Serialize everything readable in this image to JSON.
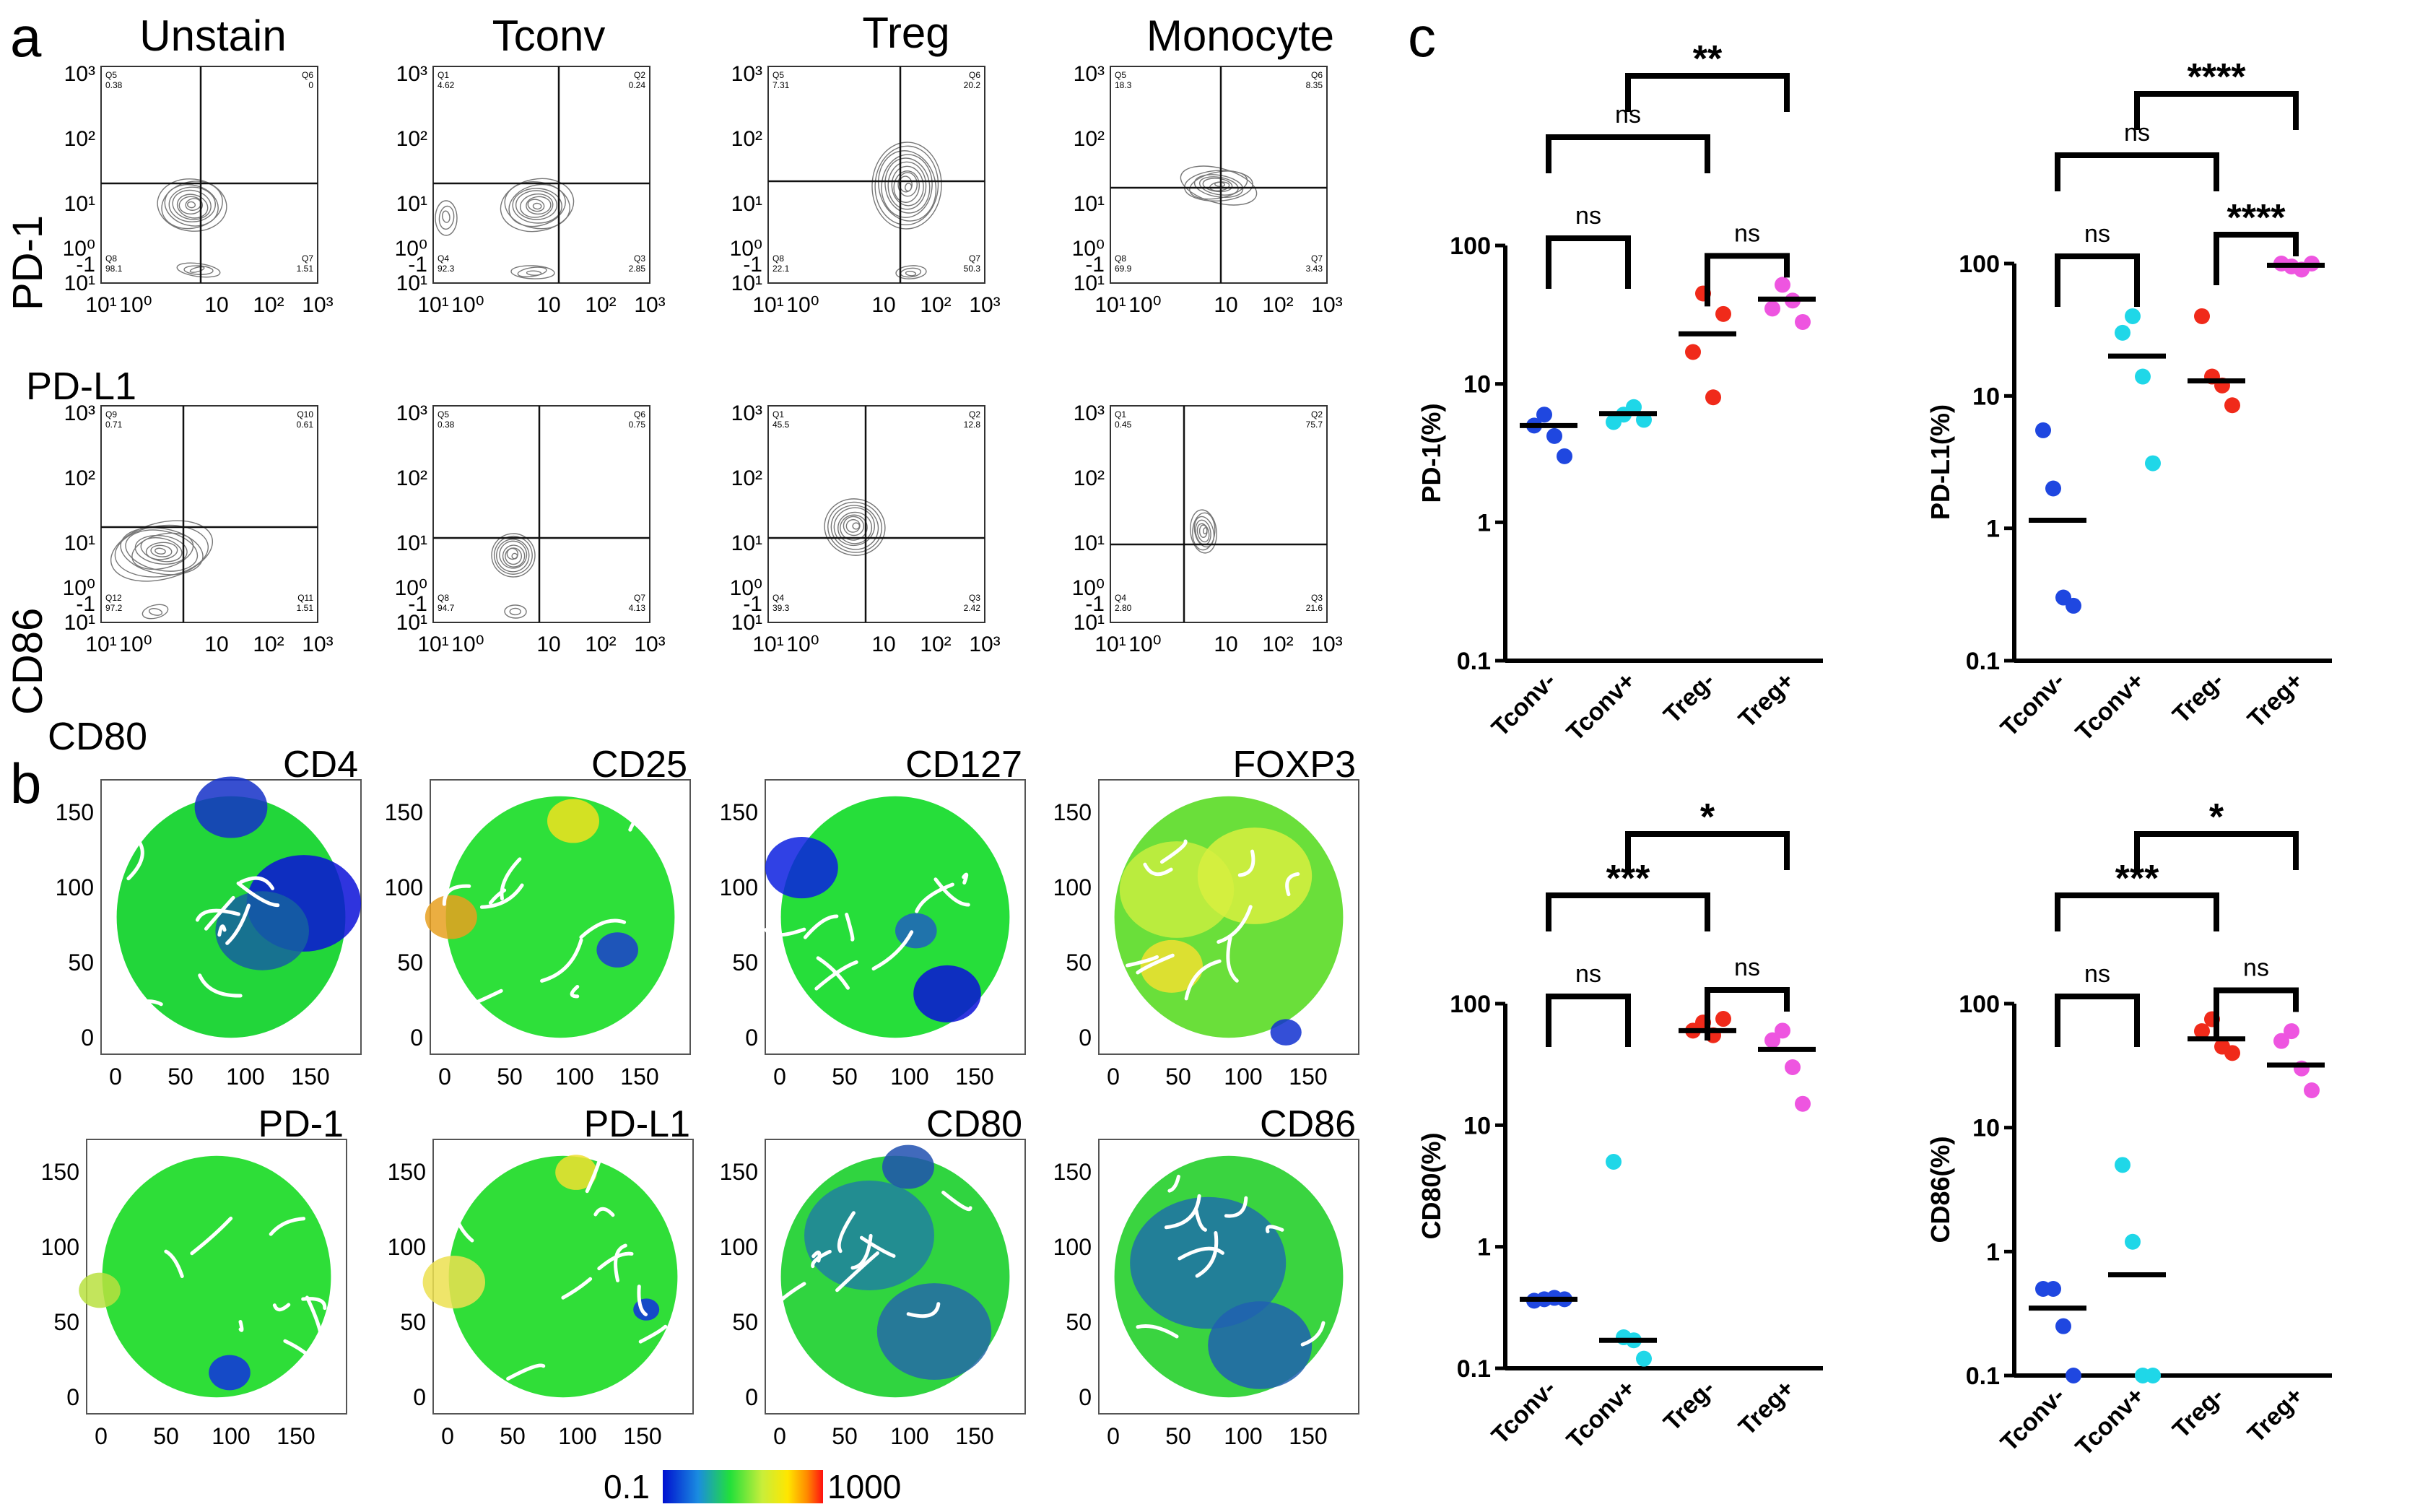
{
  "figure": {
    "panel_labels": [
      "a",
      "b",
      "c"
    ],
    "flow": {
      "columns": [
        "Unstain",
        "Tconv",
        "Treg",
        "Monocyte"
      ],
      "rows": [
        {
          "y_marker": "PD-1",
          "x_marker": "PD-L1",
          "quadrants": [
            {
              "ul_id": "Q5",
              "ul": "0.38",
              "ur_id": "Q6",
              "ur": "0",
              "ll_id": "Q8",
              "ll": "98.1",
              "lr_id": "Q7",
              "lr": "1.51"
            },
            {
              "ul_id": "Q1",
              "ul": "4.62",
              "ur_id": "Q2",
              "ur": "0.24",
              "ll_id": "Q4",
              "ll": "92.3",
              "lr_id": "Q3",
              "lr": "2.85"
            },
            {
              "ul_id": "Q5",
              "ul": "7.31",
              "ur_id": "Q6",
              "ur": "20.2",
              "ll_id": "Q8",
              "ll": "22.1",
              "lr_id": "Q7",
              "lr": "50.3"
            },
            {
              "ul_id": "Q5",
              "ul": "18.3",
              "ur_id": "Q6",
              "ur": "8.35",
              "ll_id": "Q8",
              "ll": "69.9",
              "lr_id": "Q7",
              "lr": "3.43"
            }
          ]
        },
        {
          "y_marker": "CD86",
          "x_marker": "CD80",
          "quadrants": [
            {
              "ul_id": "Q9",
              "ul": "0.71",
              "ur_id": "Q10",
              "ur": "0.61",
              "ll_id": "Q12",
              "ll": "97.2",
              "lr_id": "Q11",
              "lr": "1.51"
            },
            {
              "ul_id": "Q5",
              "ul": "0.38",
              "ur_id": "Q6",
              "ur": "0.75",
              "ll_id": "Q8",
              "ll": "94.7",
              "lr_id": "Q7",
              "lr": "4.13"
            },
            {
              "ul_id": "Q1",
              "ul": "45.5",
              "ur_id": "Q2",
              "ur": "12.8",
              "ll_id": "Q4",
              "ll": "39.3",
              "lr_id": "Q3",
              "lr": "2.42"
            },
            {
              "ul_id": "Q1",
              "ul": "0.45",
              "ur_id": "Q2",
              "ur": "75.7",
              "ll_id": "Q4",
              "ll": "2.80",
              "lr_id": "Q3",
              "lr": "21.6"
            }
          ]
        }
      ],
      "y_ticks": [
        "10³",
        "10²",
        "10¹",
        "10⁰",
        "-1",
        "10¹"
      ],
      "x_ticks": [
        "10¹",
        "10⁰",
        "10",
        "10²",
        "10³"
      ]
    },
    "tsne": {
      "markers_row1": [
        "CD4",
        "CD25",
        "CD127",
        "FOXP3"
      ],
      "markers_row2": [
        "PD-1",
        "PD-L1",
        "CD80",
        "CD86"
      ],
      "axis_ticks": [
        "0",
        "50",
        "100",
        "150"
      ],
      "colorbar_min": "0.1",
      "colorbar_max": "1000"
    }
  },
  "colors": {
    "tconv_minus": "#1f47e0",
    "tconv_plus": "#1fd7e8",
    "treg_minus": "#f02a1a",
    "treg_plus": "#ee55e0",
    "contour": "#777777",
    "tsne_green": "#22e03a"
  },
  "chart_data": [
    {
      "type": "scatter",
      "scale": "log",
      "ylabel": "PD-1(%)",
      "categories": [
        "Tconv-",
        "Tconv+",
        "Treg-",
        "Treg+"
      ],
      "ylim": [
        0.1,
        100
      ],
      "yticks": [
        "100",
        "10",
        "1",
        "0.1"
      ],
      "points": [
        [
          5.0,
          6.0,
          4.2,
          3.0
        ],
        [
          5.3,
          6.0,
          6.8,
          5.5
        ],
        [
          17,
          45,
          8,
          32
        ],
        [
          35,
          52,
          40,
          28
        ]
      ],
      "medians": [
        5.0,
        6.1,
        23,
        41
      ],
      "brackets": [
        {
          "from": 0,
          "to": 1,
          "label": "ns"
        },
        {
          "from": 2,
          "to": 3,
          "label": "ns"
        },
        {
          "from": 0,
          "to": 2,
          "label": "ns"
        },
        {
          "from": 1,
          "to": 3,
          "label": "**"
        }
      ]
    },
    {
      "type": "scatter",
      "scale": "log",
      "ylabel": "PD-L1(%)",
      "categories": [
        "Tconv-",
        "Tconv+",
        "Treg-",
        "Treg+"
      ],
      "ylim": [
        0.1,
        100
      ],
      "yticks": [
        "100",
        "10",
        "1",
        "0.1"
      ],
      "points": [
        [
          5.5,
          2.0,
          0.3,
          0.26
        ],
        [
          30,
          40,
          14,
          3.1
        ],
        [
          40,
          14,
          12,
          8.5
        ],
        [
          100,
          95,
          90,
          100
        ]
      ],
      "medians": [
        1.15,
        20,
        13,
        97
      ],
      "brackets": [
        {
          "from": 0,
          "to": 1,
          "label": "ns"
        },
        {
          "from": 2,
          "to": 3,
          "label": "****"
        },
        {
          "from": 0,
          "to": 2,
          "label": "ns"
        },
        {
          "from": 1,
          "to": 3,
          "label": "****"
        }
      ]
    },
    {
      "type": "scatter",
      "scale": "log",
      "ylabel": "CD80(%)",
      "categories": [
        "Tconv-",
        "Tconv+",
        "Treg-",
        "Treg+"
      ],
      "ylim": [
        0.1,
        100
      ],
      "yticks": [
        "100",
        "10",
        "1",
        "0.1"
      ],
      "points": [
        [
          0.36,
          0.37,
          0.38,
          0.37
        ],
        [
          5.0,
          0.18,
          0.17,
          0.12
        ],
        [
          60,
          70,
          55,
          75
        ],
        [
          50,
          60,
          30,
          15
        ]
      ],
      "medians": [
        0.37,
        0.17,
        60,
        42
      ],
      "brackets": [
        {
          "from": 0,
          "to": 1,
          "label": "ns"
        },
        {
          "from": 2,
          "to": 3,
          "label": "ns"
        },
        {
          "from": 0,
          "to": 2,
          "label": "***"
        },
        {
          "from": 1,
          "to": 3,
          "label": "*"
        }
      ]
    },
    {
      "type": "scatter",
      "scale": "log",
      "ylabel": "CD86(%)",
      "categories": [
        "Tconv-",
        "Tconv+",
        "Treg-",
        "Treg+"
      ],
      "ylim": [
        0.1,
        100
      ],
      "yticks": [
        "100",
        "10",
        "1",
        "0.1"
      ],
      "points": [
        [
          0.5,
          0.5,
          0.25,
          0.1
        ],
        [
          5.0,
          1.2,
          0.1,
          0.1
        ],
        [
          60,
          75,
          45,
          40
        ],
        [
          50,
          60,
          30,
          20
        ]
      ],
      "medians": [
        0.35,
        0.65,
        52,
        32
      ],
      "brackets": [
        {
          "from": 0,
          "to": 1,
          "label": "ns"
        },
        {
          "from": 2,
          "to": 3,
          "label": "ns"
        },
        {
          "from": 0,
          "to": 2,
          "label": "***"
        },
        {
          "from": 1,
          "to": 3,
          "label": "*"
        }
      ]
    }
  ]
}
